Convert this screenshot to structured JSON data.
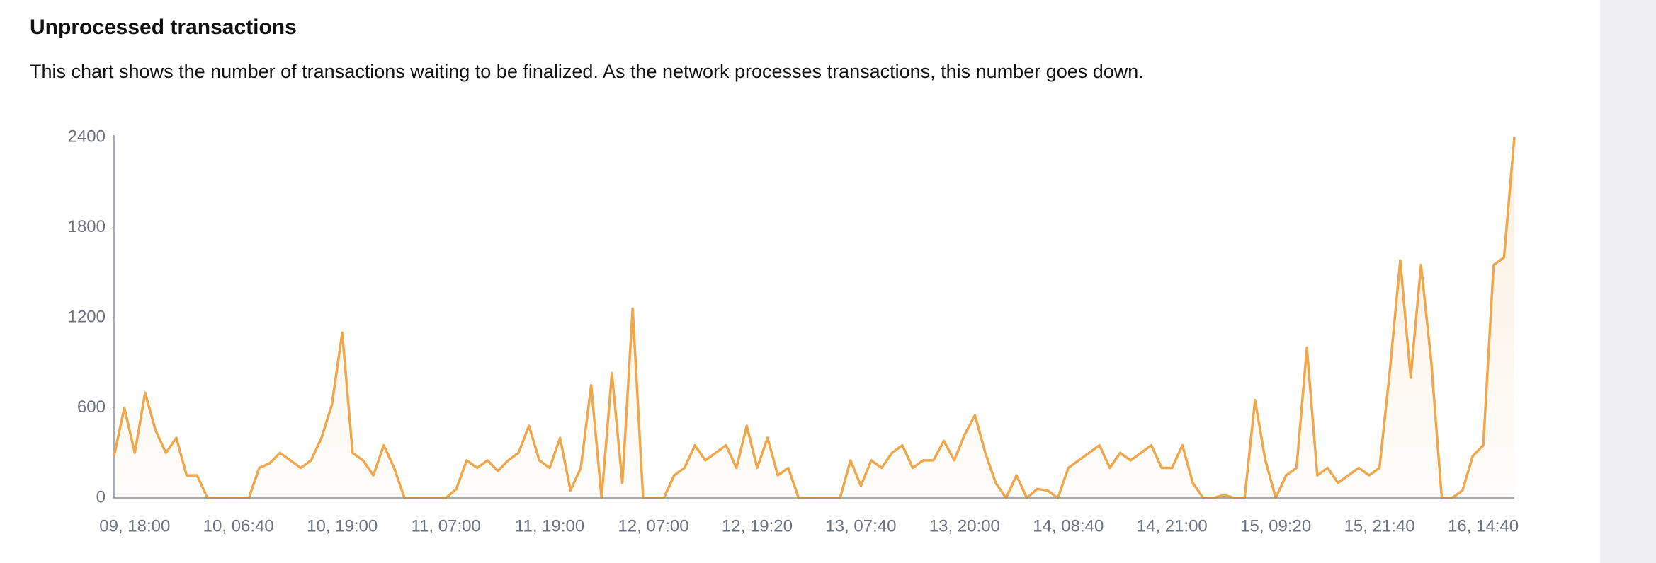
{
  "chart_data": {
    "type": "line",
    "title": "Unprocessed transactions",
    "subtitle": "This chart shows the number of transactions waiting to be finalized. As the network processes transactions, this number goes down.",
    "color": "#f0a74c",
    "categories": [
      null,
      null,
      "09, 18:00",
      null,
      null,
      null,
      null,
      null,
      null,
      null,
      null,
      null,
      "10, 06:40",
      null,
      null,
      null,
      null,
      null,
      null,
      null,
      null,
      null,
      "10, 19:00",
      null,
      null,
      null,
      null,
      null,
      null,
      null,
      null,
      null,
      "11, 07:00",
      null,
      null,
      null,
      null,
      null,
      null,
      null,
      null,
      null,
      "11, 19:00",
      null,
      null,
      null,
      null,
      null,
      null,
      null,
      null,
      null,
      "12, 07:00",
      null,
      null,
      null,
      null,
      null,
      null,
      null,
      null,
      null,
      "12, 19:20",
      null,
      null,
      null,
      null,
      null,
      null,
      null,
      null,
      null,
      "13, 07:40",
      null,
      null,
      null,
      null,
      null,
      null,
      null,
      null,
      null,
      "13, 20:00",
      null,
      null,
      null,
      null,
      null,
      null,
      null,
      null,
      null,
      "14, 08:40",
      null,
      null,
      null,
      null,
      null,
      null,
      null,
      null,
      null,
      "14, 21:00",
      null,
      null,
      null,
      null,
      null,
      null,
      null,
      null,
      null,
      "15, 09:20",
      null,
      null,
      null,
      null,
      null,
      null,
      null,
      null,
      null,
      "15, 21:40",
      null,
      null,
      null,
      null,
      null,
      null,
      null,
      null,
      null,
      "16, 14:40",
      null,
      null,
      null
    ],
    "values": [
      280,
      600,
      300,
      700,
      450,
      300,
      400,
      150,
      150,
      0,
      0,
      0,
      0,
      0,
      200,
      230,
      300,
      250,
      200,
      250,
      400,
      620,
      1100,
      300,
      250,
      150,
      350,
      200,
      0,
      0,
      0,
      0,
      0,
      60,
      250,
      200,
      250,
      180,
      250,
      300,
      480,
      250,
      200,
      400,
      50,
      200,
      750,
      0,
      830,
      100,
      1260,
      0,
      0,
      0,
      150,
      200,
      350,
      250,
      300,
      350,
      200,
      480,
      200,
      400,
      150,
      200,
      0,
      0,
      0,
      0,
      0,
      250,
      80,
      250,
      200,
      300,
      350,
      200,
      250,
      250,
      380,
      250,
      420,
      550,
      300,
      100,
      0,
      150,
      0,
      60,
      50,
      0,
      200,
      250,
      300,
      350,
      200,
      300,
      250,
      300,
      350,
      200,
      200,
      350,
      100,
      0,
      0,
      20,
      0,
      0,
      650,
      250,
      0,
      150,
      200,
      1000,
      150,
      200,
      100,
      150,
      200,
      150,
      200,
      850,
      1580,
      800,
      1550,
      900,
      0,
      0,
      50,
      280,
      350,
      1550,
      1600,
      2400
    ],
    "ylim": [
      0,
      2400
    ],
    "yticks": [
      0,
      600,
      1200,
      1800,
      2400
    ],
    "grid": false
  }
}
